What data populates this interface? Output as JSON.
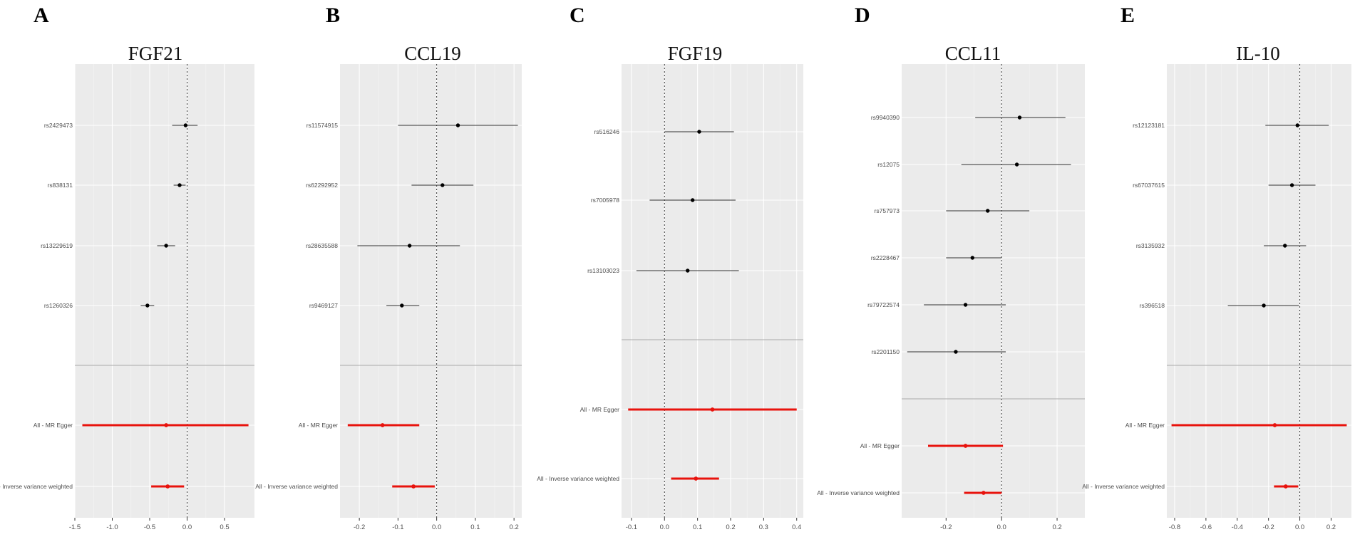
{
  "chart_data": [
    {
      "letter": "A",
      "title": "FGF21",
      "type": "forest",
      "xlim": [
        -1.5,
        0.9
      ],
      "xticks": [
        -1.5,
        -1.0,
        -0.5,
        0.0,
        0.5
      ],
      "xtick_labels": [
        "-1.5",
        "-1.0",
        "-0.5",
        "0.0",
        "0.5"
      ],
      "snps": [
        {
          "label": "rs2429473",
          "estimate": -0.02,
          "lo": -0.2,
          "hi": 0.14
        },
        {
          "label": "rs838131",
          "estimate": -0.1,
          "lo": -0.18,
          "hi": -0.02
        },
        {
          "label": "rs13229619",
          "estimate": -0.28,
          "lo": -0.4,
          "hi": -0.16
        },
        {
          "label": "rs1260326",
          "estimate": -0.53,
          "lo": -0.62,
          "hi": -0.44
        }
      ],
      "summary": [
        {
          "label": "All - MR Egger",
          "estimate": -0.28,
          "lo": -1.4,
          "hi": 0.82
        },
        {
          "label": "All - Inverse variance weighted",
          "estimate": -0.26,
          "lo": -0.48,
          "hi": -0.04
        }
      ]
    },
    {
      "letter": "B",
      "title": "CCL19",
      "type": "forest",
      "xlim": [
        -0.25,
        0.22
      ],
      "xticks": [
        -0.2,
        -0.1,
        0.0,
        0.1,
        0.2
      ],
      "xtick_labels": [
        "-0.2",
        "-0.1",
        "0.0",
        "0.1",
        "0.2"
      ],
      "snps": [
        {
          "label": "rs11574915",
          "estimate": 0.055,
          "lo": -0.1,
          "hi": 0.21
        },
        {
          "label": "rs62292952",
          "estimate": 0.015,
          "lo": -0.065,
          "hi": 0.095
        },
        {
          "label": "rs28635588",
          "estimate": -0.07,
          "lo": -0.205,
          "hi": 0.06
        },
        {
          "label": "rs9469127",
          "estimate": -0.09,
          "lo": -0.13,
          "hi": -0.045
        }
      ],
      "summary": [
        {
          "label": "All - MR Egger",
          "estimate": -0.14,
          "lo": -0.23,
          "hi": -0.045
        },
        {
          "label": "All - Inverse variance weighted",
          "estimate": -0.06,
          "lo": -0.115,
          "hi": -0.005
        }
      ]
    },
    {
      "letter": "C",
      "title": "FGF19",
      "type": "forest",
      "xlim": [
        -0.13,
        0.42
      ],
      "xticks": [
        -0.1,
        0.0,
        0.1,
        0.2,
        0.3,
        0.4
      ],
      "xtick_labels": [
        "-0.1",
        "0.0",
        "0.1",
        "0.2",
        "0.3",
        "0.4"
      ],
      "snps": [
        {
          "label": "rs516246",
          "estimate": 0.105,
          "lo": 0.0,
          "hi": 0.21
        },
        {
          "label": "rs7005978",
          "estimate": 0.085,
          "lo": -0.045,
          "hi": 0.215
        },
        {
          "label": "rs13103023",
          "estimate": 0.07,
          "lo": -0.085,
          "hi": 0.225
        }
      ],
      "summary": [
        {
          "label": "All - MR Egger",
          "estimate": 0.145,
          "lo": -0.11,
          "hi": 0.4
        },
        {
          "label": "All - Inverse variance weighted",
          "estimate": 0.095,
          "lo": 0.02,
          "hi": 0.165
        }
      ]
    },
    {
      "letter": "D",
      "title": "CCL11",
      "type": "forest",
      "xlim": [
        -0.36,
        0.3
      ],
      "xticks": [
        -0.2,
        0.0,
        0.2
      ],
      "xtick_labels": [
        "-0.2",
        "0.0",
        "0.2"
      ],
      "snps": [
        {
          "label": "rs9940390",
          "estimate": 0.065,
          "lo": -0.095,
          "hi": 0.23
        },
        {
          "label": "rs12075",
          "estimate": 0.055,
          "lo": -0.145,
          "hi": 0.25
        },
        {
          "label": "rs757973",
          "estimate": -0.05,
          "lo": -0.2,
          "hi": 0.1
        },
        {
          "label": "rs2228467",
          "estimate": -0.105,
          "lo": -0.2,
          "hi": 0.0
        },
        {
          "label": "rs79722574",
          "estimate": -0.13,
          "lo": -0.28,
          "hi": 0.015
        },
        {
          "label": "rs2201150",
          "estimate": -0.165,
          "lo": -0.34,
          "hi": 0.015
        }
      ],
      "summary": [
        {
          "label": "All - MR Egger",
          "estimate": -0.13,
          "lo": -0.265,
          "hi": 0.005
        },
        {
          "label": "All - Inverse variance weighted",
          "estimate": -0.065,
          "lo": -0.135,
          "hi": 0.0
        }
      ]
    },
    {
      "letter": "E",
      "title": "IL-10",
      "type": "forest",
      "xlim": [
        -0.85,
        0.33
      ],
      "xticks": [
        -0.8,
        -0.6,
        -0.4,
        -0.2,
        0.0,
        0.2
      ],
      "xtick_labels": [
        "-0.8",
        "-0.6",
        "-0.4",
        "-0.2",
        "0.0",
        "0.2"
      ],
      "snps": [
        {
          "label": "rs12123181",
          "estimate": -0.015,
          "lo": -0.22,
          "hi": 0.185
        },
        {
          "label": "rs67037615",
          "estimate": -0.05,
          "lo": -0.2,
          "hi": 0.1
        },
        {
          "label": "rs3135932",
          "estimate": -0.095,
          "lo": -0.23,
          "hi": 0.04
        },
        {
          "label": "rs396518",
          "estimate": -0.23,
          "lo": -0.46,
          "hi": -0.005
        }
      ],
      "summary": [
        {
          "label": "All - MR Egger",
          "estimate": -0.16,
          "lo": -0.82,
          "hi": 0.3
        },
        {
          "label": "All - Inverse variance weighted",
          "estimate": -0.09,
          "lo": -0.165,
          "hi": -0.01
        }
      ]
    }
  ]
}
